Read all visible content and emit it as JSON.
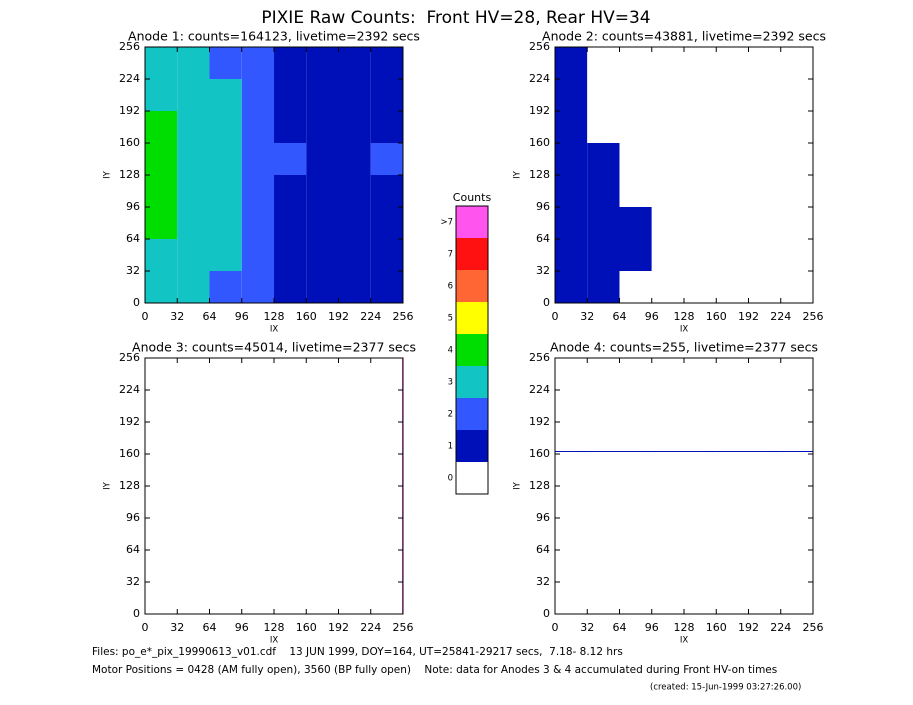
{
  "title": "PIXIE Raw Counts:  Front HV=28, Rear HV=34",
  "chart_data": [
    {
      "type": "heatmap",
      "title": "Anode 1: counts=164123, livetime=2392 secs",
      "xlabel": "IX",
      "ylabel": "IY",
      "xlim": [
        0,
        256
      ],
      "ylim": [
        0,
        256
      ],
      "xticks": [
        0,
        32,
        64,
        96,
        128,
        160,
        192,
        224,
        256
      ],
      "yticks": [
        0,
        32,
        64,
        96,
        128,
        160,
        192,
        224,
        256
      ],
      "xbins": [
        0,
        32,
        64,
        96,
        128,
        160,
        192,
        224,
        256
      ],
      "ybins": [
        0,
        32,
        64,
        96,
        128,
        160,
        192,
        224,
        256
      ],
      "values": [
        [
          3.6,
          3.3,
          2.9,
          2.5,
          1.8,
          1.6,
          1.5,
          1.7
        ],
        [
          3.9,
          3.5,
          3.1,
          2.7,
          1.9,
          1.7,
          1.5,
          1.8
        ],
        [
          4.1,
          3.6,
          3.2,
          2.8,
          1.9,
          1.6,
          1.4,
          1.9
        ],
        [
          4.0,
          3.4,
          3.0,
          2.6,
          1.8,
          1.5,
          1.4,
          1.8
        ],
        [
          4.2,
          3.7,
          3.3,
          2.9,
          2.0,
          1.7,
          1.6,
          2.0
        ],
        [
          4.1,
          3.5,
          3.1,
          2.7,
          1.9,
          1.6,
          1.5,
          1.9
        ],
        [
          3.9,
          3.4,
          3.0,
          2.6,
          1.8,
          1.6,
          1.4,
          1.8
        ],
        [
          3.7,
          3.2,
          2.8,
          2.4,
          1.7,
          1.5,
          1.4,
          1.6
        ]
      ]
    },
    {
      "type": "heatmap",
      "title": "Anode 2: counts=43881, livetime=2392 secs",
      "xlabel": "IX",
      "ylabel": "IY",
      "xlim": [
        0,
        256
      ],
      "ylim": [
        0,
        256
      ],
      "xticks": [
        0,
        32,
        64,
        96,
        128,
        160,
        192,
        224,
        256
      ],
      "yticks": [
        0,
        32,
        64,
        96,
        128,
        160,
        192,
        224,
        256
      ],
      "xbins": [
        0,
        32,
        64,
        96,
        128,
        160,
        192,
        224,
        256
      ],
      "ybins": [
        0,
        32,
        64,
        96,
        128,
        160,
        192,
        224,
        256
      ],
      "values": [
        [
          1.2,
          1.0,
          0.9,
          0.8,
          0.7,
          0.6,
          0.5,
          0.8
        ],
        [
          1.3,
          1.1,
          1.0,
          0.9,
          0.7,
          0.6,
          0.5,
          0.9
        ],
        [
          1.3,
          1.1,
          1.0,
          0.9,
          0.7,
          0.6,
          0.5,
          0.8
        ],
        [
          1.2,
          1.0,
          0.9,
          0.8,
          0.6,
          0.5,
          0.5,
          0.8
        ],
        [
          1.1,
          1.0,
          0.9,
          0.8,
          0.6,
          0.5,
          0.4,
          0.7
        ],
        [
          1.1,
          0.9,
          0.8,
          0.7,
          0.6,
          0.5,
          0.4,
          0.7
        ],
        [
          1.0,
          0.9,
          0.8,
          0.7,
          0.5,
          0.4,
          0.4,
          0.6
        ],
        [
          1.0,
          0.8,
          0.7,
          0.6,
          0.5,
          0.4,
          0.3,
          0.6
        ]
      ]
    },
    {
      "type": "heatmap",
      "title": "Anode 3: counts=45014, livetime=2377 secs",
      "xlabel": "IX",
      "ylabel": "IY",
      "xlim": [
        0,
        256
      ],
      "ylim": [
        0,
        256
      ],
      "xticks": [
        0,
        32,
        64,
        96,
        128,
        160,
        192,
        224,
        256
      ],
      "yticks": [
        0,
        32,
        64,
        96,
        128,
        160,
        192,
        224,
        256
      ],
      "xbins": [
        0,
        32,
        64,
        96,
        128,
        160,
        192,
        224,
        255,
        256
      ],
      "ybins": [
        0,
        32,
        64,
        96,
        128,
        160,
        192,
        224,
        256
      ],
      "values": [
        [
          0,
          0,
          0,
          0,
          0,
          0,
          0,
          0,
          176
        ],
        [
          0,
          0,
          0,
          0,
          0,
          0,
          0,
          0,
          176
        ],
        [
          0,
          0,
          0,
          0,
          0,
          0,
          0,
          0,
          176
        ],
        [
          0,
          0,
          0,
          0,
          0,
          0,
          0,
          0,
          176
        ],
        [
          0,
          0,
          0,
          0,
          0,
          0,
          0,
          0,
          176
        ],
        [
          0,
          0,
          0,
          0,
          0,
          0,
          0,
          0,
          176
        ],
        [
          0,
          0,
          0,
          0,
          0,
          0,
          0,
          0,
          176
        ],
        [
          0,
          0,
          0,
          0,
          0,
          0,
          0,
          0,
          176
        ]
      ]
    },
    {
      "type": "heatmap",
      "title": "Anode 4: counts=255, livetime=2377 secs",
      "xlabel": "IX",
      "ylabel": "IY",
      "xlim": [
        0,
        256
      ],
      "ylim": [
        0,
        256
      ],
      "xticks": [
        0,
        32,
        64,
        96,
        128,
        160,
        192,
        224,
        256
      ],
      "yticks": [
        0,
        32,
        64,
        96,
        128,
        160,
        192,
        224,
        256
      ],
      "xbins": [
        0,
        32,
        64,
        96,
        128,
        160,
        192,
        224,
        256
      ],
      "ybins": [
        0,
        32,
        64,
        96,
        128,
        160,
        162,
        163,
        192,
        224,
        256
      ],
      "values": [
        [
          0,
          0,
          0,
          0,
          0,
          0,
          0,
          0
        ],
        [
          0,
          0,
          0,
          0,
          0,
          0,
          0,
          0
        ],
        [
          0,
          0,
          0,
          0,
          0,
          0,
          0,
          0
        ],
        [
          0,
          0,
          0,
          0,
          0,
          0,
          0,
          0
        ],
        [
          0,
          0,
          0,
          0,
          0,
          0,
          0,
          0
        ],
        [
          0,
          0,
          0,
          0,
          0,
          0,
          0,
          0
        ],
        [
          1,
          1,
          1,
          1,
          1,
          1,
          1,
          1
        ],
        [
          0,
          0,
          0,
          0,
          0,
          0,
          0,
          0
        ],
        [
          0,
          0,
          0,
          0,
          0,
          0,
          0,
          0
        ],
        [
          0,
          0,
          0,
          0,
          0,
          0,
          0,
          0
        ]
      ]
    }
  ],
  "colorbar": {
    "title": "Counts",
    "levels": [
      {
        "label": "0",
        "color": "#ffffff"
      },
      {
        "label": "1",
        "color": "#0010b8"
      },
      {
        "label": "2",
        "color": "#3357ff"
      },
      {
        "label": "3",
        "color": "#12c4c4"
      },
      {
        "label": "4",
        "color": "#00dd00"
      },
      {
        "label": "5",
        "color": "#ffff00"
      },
      {
        "label": "6",
        "color": "#ff6633"
      },
      {
        "label": "7",
        "color": "#ff1111"
      },
      {
        "label": ">7",
        "color": "#ff55ee"
      }
    ]
  },
  "footer": [
    "Files: po_e*_pix_19990613_v01.cdf    13 JUN 1999, DOY=164, UT=25841-29217 secs,  7.18- 8.12 hrs",
    "Motor Positions = 0428 (AM fully open), 3560 (BP fully open)    Note: data for Anodes 3 & 4 accumulated during Front HV-on times"
  ],
  "created": "(created: 15-Jun-1999 03:27:26.00)"
}
